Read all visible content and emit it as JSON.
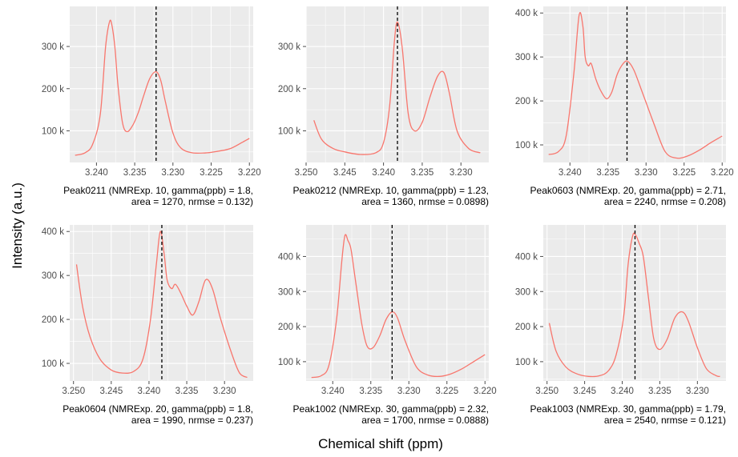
{
  "ylabel": "Intensity (a.u.)",
  "xlabel": "Chemical shift (ppm)",
  "colors": {
    "panel_bg": "#ebebeb",
    "grid": "#ffffff",
    "line": "#f8766d",
    "vline": "#000000",
    "tick": "#4d4d4d"
  },
  "chart_data": [
    {
      "type": "line",
      "caption": [
        "Peak0211 (NMRExp. 10, gamma(ppb) = 1.8,",
        "area = 1270, nrmse = 0.132)"
      ],
      "xlim": [
        3.2435,
        3.2195
      ],
      "ylim": [
        25000,
        395000
      ],
      "xticks": [
        3.24,
        3.235,
        3.23,
        3.225,
        3.22
      ],
      "xtick_labels": [
        "3.240",
        "3.235",
        "3.230",
        "3.225",
        "3.220"
      ],
      "yticks": [
        100000,
        200000,
        300000
      ],
      "ytick_labels": [
        "100 k",
        "200 k",
        "300 k"
      ],
      "vline": 3.2322,
      "x": [
        3.2428,
        3.2415,
        3.2405,
        3.2395,
        3.2388,
        3.2383,
        3.238,
        3.2376,
        3.2372,
        3.2366,
        3.236,
        3.2352,
        3.2345,
        3.2338,
        3.233,
        3.2322,
        3.2316,
        3.231,
        3.23,
        3.229,
        3.2275,
        3.2255,
        3.224,
        3.2225,
        3.221,
        3.22
      ],
      "y": [
        42000,
        48000,
        68000,
        140000,
        300000,
        358000,
        352000,
        300000,
        210000,
        120000,
        98000,
        115000,
        145000,
        185000,
        225000,
        240000,
        220000,
        170000,
        95000,
        60000,
        48000,
        48000,
        52000,
        58000,
        72000,
        82000
      ]
    },
    {
      "type": "line",
      "caption": [
        "Peak0212 (NMRExp. 10, gamma(ppb) = 1.23,",
        "area = 1360, nrmse = 0.0898)"
      ],
      "xlim": [
        3.25,
        3.2264
      ],
      "ylim": [
        25000,
        395000
      ],
      "xticks": [
        3.25,
        3.245,
        3.24,
        3.235,
        3.23
      ],
      "xtick_labels": [
        "3.250",
        "3.245",
        "3.240",
        "3.235",
        "3.230"
      ],
      "yticks": [
        100000,
        200000,
        300000
      ],
      "ytick_labels": [
        "100 k",
        "200 k",
        "300 k"
      ],
      "vline": 3.2382,
      "x": [
        3.249,
        3.248,
        3.2465,
        3.245,
        3.243,
        3.241,
        3.24,
        3.2392,
        3.2386,
        3.2382,
        3.2376,
        3.2368,
        3.236,
        3.235,
        3.234,
        3.233,
        3.2322,
        3.2315,
        3.2305,
        3.229,
        3.2275
      ],
      "y": [
        125000,
        80000,
        58000,
        50000,
        44000,
        48000,
        72000,
        160000,
        310000,
        358000,
        300000,
        140000,
        100000,
        120000,
        180000,
        230000,
        238000,
        190000,
        100000,
        58000,
        48000
      ]
    },
    {
      "type": "line",
      "caption": [
        "Peak0603 (NMRExp. 20, gamma(ppb) = 2.71,",
        "area = 2240, nrmse = 0.208)"
      ],
      "xlim": [
        3.2435,
        3.2195
      ],
      "ylim": [
        60000,
        415000
      ],
      "xticks": [
        3.24,
        3.235,
        3.23,
        3.225,
        3.22
      ],
      "xtick_labels": [
        "3.240",
        "3.235",
        "3.230",
        "3.225",
        "3.220"
      ],
      "yticks": [
        100000,
        200000,
        300000,
        400000
      ],
      "ytick_labels": [
        "100 k",
        "200 k",
        "300 k",
        "400 k"
      ],
      "vline": 3.2325,
      "x": [
        3.2428,
        3.2415,
        3.2405,
        3.2395,
        3.2388,
        3.2383,
        3.238,
        3.2376,
        3.2372,
        3.2366,
        3.236,
        3.2352,
        3.2345,
        3.2338,
        3.233,
        3.2324,
        3.2316,
        3.2305,
        3.229,
        3.2275,
        3.226,
        3.2245,
        3.223,
        3.2215,
        3.22
      ],
      "y": [
        78000,
        85000,
        120000,
        260000,
        395000,
        370000,
        300000,
        280000,
        285000,
        250000,
        225000,
        205000,
        220000,
        260000,
        285000,
        290000,
        270000,
        220000,
        150000,
        85000,
        70000,
        75000,
        88000,
        105000,
        120000
      ]
    },
    {
      "type": "line",
      "caption": [
        "Peak0604 (NMRExp. 20, gamma(ppb) = 1.8,",
        "area = 1990, nrmse = 0.237)"
      ],
      "xlim": [
        3.2505,
        3.2262
      ],
      "ylim": [
        60000,
        415000
      ],
      "xticks": [
        3.25,
        3.245,
        3.24,
        3.235,
        3.23
      ],
      "xtick_labels": [
        "3.250",
        "3.245",
        "3.240",
        "3.235",
        "3.230"
      ],
      "yticks": [
        100000,
        200000,
        300000,
        400000
      ],
      "ytick_labels": [
        "100 k",
        "200 k",
        "300 k",
        "400 k"
      ],
      "vline": 3.2383,
      "x": [
        3.2496,
        3.2488,
        3.2478,
        3.2465,
        3.245,
        3.2435,
        3.242,
        3.2408,
        3.2398,
        3.239,
        3.2385,
        3.238,
        3.2376,
        3.237,
        3.2365,
        3.2358,
        3.235,
        3.2342,
        3.2334,
        3.2325,
        3.2316,
        3.2305,
        3.229,
        3.228,
        3.227
      ],
      "y": [
        325000,
        230000,
        160000,
        110000,
        85000,
        78000,
        82000,
        110000,
        200000,
        330000,
        400000,
        350000,
        290000,
        270000,
        280000,
        260000,
        230000,
        210000,
        240000,
        290000,
        270000,
        200000,
        120000,
        78000,
        68000
      ]
    },
    {
      "type": "line",
      "caption": [
        "Peak1002 (NMRExp. 30, gamma(ppb) = 2.32,",
        "area = 1700, nrmse = 0.0888)"
      ],
      "xlim": [
        3.2435,
        3.2195
      ],
      "ylim": [
        45000,
        490000
      ],
      "xticks": [
        3.24,
        3.235,
        3.23,
        3.225,
        3.22
      ],
      "xtick_labels": [
        "3.240",
        "3.235",
        "3.230",
        "3.225",
        "3.220"
      ],
      "yticks": [
        100000,
        200000,
        300000,
        400000
      ],
      "ytick_labels": [
        "100 k",
        "200 k",
        "300 k",
        "400 k"
      ],
      "vline": 3.2322,
      "x": [
        3.2428,
        3.2415,
        3.2405,
        3.2395,
        3.2388,
        3.2384,
        3.238,
        3.2376,
        3.237,
        3.2362,
        3.2355,
        3.2347,
        3.2338,
        3.233,
        3.2322,
        3.2315,
        3.2305,
        3.229,
        3.2275,
        3.226,
        3.2245,
        3.223,
        3.2215,
        3.22
      ],
      "y": [
        55000,
        60000,
        90000,
        220000,
        390000,
        460000,
        445000,
        420000,
        330000,
        210000,
        145000,
        140000,
        175000,
        220000,
        242000,
        225000,
        160000,
        85000,
        62000,
        58000,
        65000,
        80000,
        100000,
        120000
      ]
    },
    {
      "type": "line",
      "caption": [
        "Peak1003 (NMRExp. 30, gamma(ppb) = 1.79,",
        "area = 2540, nrmse = 0.121)"
      ],
      "xlim": [
        3.2505,
        3.2262
      ],
      "ylim": [
        45000,
        490000
      ],
      "xticks": [
        3.25,
        3.245,
        3.24,
        3.235,
        3.23
      ],
      "xtick_labels": [
        "3.250",
        "3.245",
        "3.240",
        "3.235",
        "3.230"
      ],
      "yticks": [
        100000,
        200000,
        300000,
        400000
      ],
      "ytick_labels": [
        "100 k",
        "200 k",
        "300 k",
        "400 k"
      ],
      "vline": 3.2383,
      "x": [
        3.2497,
        3.2488,
        3.2475,
        3.246,
        3.2445,
        3.243,
        3.2418,
        3.2408,
        3.2398,
        3.2392,
        3.2386,
        3.2382,
        3.2378,
        3.2372,
        3.2365,
        3.2358,
        3.235,
        3.234,
        3.233,
        3.232,
        3.2312,
        3.23,
        3.2288,
        3.2275,
        3.227
      ],
      "y": [
        210000,
        130000,
        85000,
        65000,
        58000,
        60000,
        75000,
        120000,
        230000,
        380000,
        460000,
        460000,
        440000,
        400000,
        280000,
        165000,
        135000,
        165000,
        225000,
        242000,
        215000,
        140000,
        80000,
        60000,
        58000
      ]
    }
  ]
}
